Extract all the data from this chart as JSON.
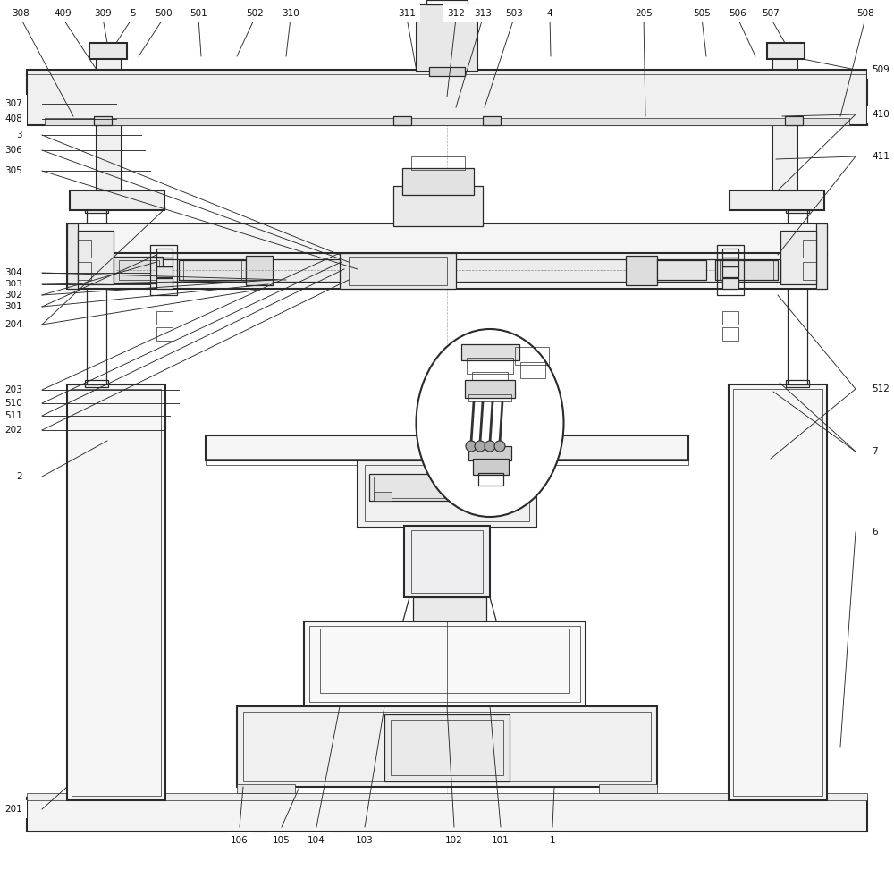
{
  "fig_width": 10.0,
  "fig_height": 9.73,
  "bg_color": "#ffffff",
  "lc": "#2a2a2a",
  "lw1": 1.5,
  "lw2": 0.9,
  "lw3": 0.5,
  "fs": 7.5
}
